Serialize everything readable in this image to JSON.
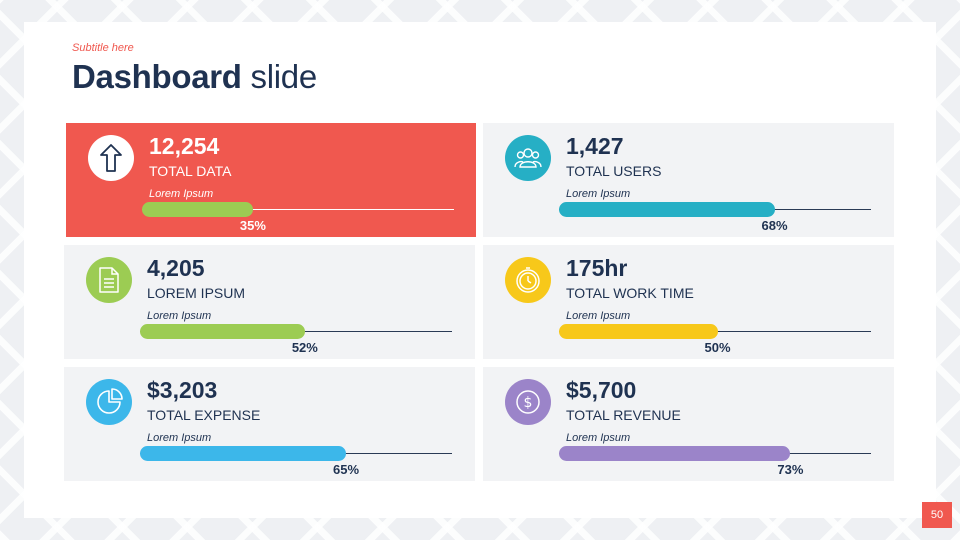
{
  "header": {
    "subtitle": "Subtitle here",
    "title_bold": "Dashboard",
    "title_light": "slide"
  },
  "cards": [
    {
      "value": "12,254",
      "label": "TOTAL DATA",
      "caption": "Lorem Ipsum",
      "percent": 35,
      "percent_label": "35%",
      "color": "#9ccc53",
      "icon": "arrow-up-icon"
    },
    {
      "value": "1,427",
      "label": "TOTAL USERS",
      "caption": "Lorem Ipsum",
      "percent": 68,
      "percent_label": "68%",
      "color": "#26afc5",
      "icon": "users-icon"
    },
    {
      "value": "4,205",
      "label": "LOREM IPSUM",
      "caption": "Lorem Ipsum",
      "percent": 52,
      "percent_label": "52%",
      "color": "#9ccc53",
      "icon": "document-icon"
    },
    {
      "value": "175hr",
      "label": "TOTAL WORK TIME",
      "caption": "Lorem Ipsum",
      "percent": 50,
      "percent_label": "50%",
      "color": "#f7c81a",
      "icon": "clock-icon"
    },
    {
      "value": "$3,203",
      "label": "TOTAL EXPENSE",
      "caption": "Lorem Ipsum",
      "percent": 65,
      "percent_label": "65%",
      "color": "#3cb7ea",
      "icon": "pie-chart-icon"
    },
    {
      "value": "$5,700",
      "label": "TOTAL REVENUE",
      "caption": "Lorem Ipsum",
      "percent": 73,
      "percent_label": "73%",
      "color": "#9b84c9",
      "icon": "dollar-icon"
    }
  ],
  "highlight_color": "#f0584f",
  "page_number": "50"
}
